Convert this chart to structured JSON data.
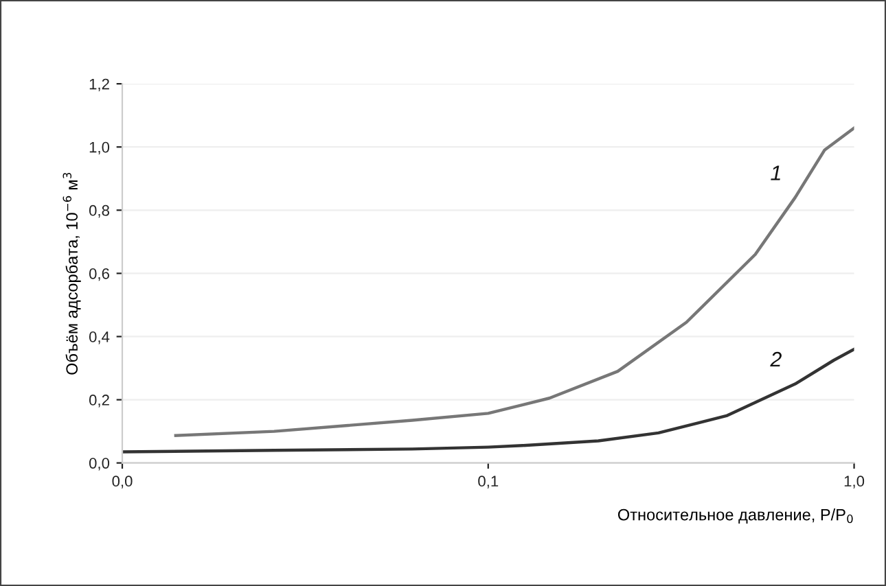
{
  "chart_data": {
    "type": "line",
    "xlabel": "Относительное давление, P/P$_{0}$",
    "ylabel": "Объём адсорбата, 10$^{−6}$ м$^{3}$",
    "log": "x",
    "xlim": [
      0.01,
      1.0
    ],
    "xticks": [
      {
        "value": 0.01,
        "label": "0,0"
      },
      {
        "value": 0.1,
        "label": "0,1"
      },
      {
        "value": 1.0,
        "label": "1,0"
      }
    ],
    "ylim": [
      0,
      1.2
    ],
    "yticks": [
      {
        "value": 0,
        "label": "0,0"
      },
      {
        "value": 0.2,
        "label": "0,2"
      },
      {
        "value": 0.4,
        "label": "0,4"
      },
      {
        "value": 0.6,
        "label": "0,6"
      },
      {
        "value": 0.8,
        "label": "0,8"
      },
      {
        "value": 1.0,
        "label": "1,0"
      },
      {
        "value": 1.2,
        "label": "1,2"
      }
    ],
    "grid": "y",
    "legend": false,
    "marker": "none",
    "line_style": "solid",
    "series": [
      {
        "name": "1",
        "color": "#777777",
        "x": [
          0.014,
          0.026,
          0.062,
          0.1,
          0.147,
          0.226,
          0.348,
          0.537,
          0.69,
          0.83,
          1.0
        ],
        "values": [
          0.087,
          0.1,
          0.135,
          0.157,
          0.205,
          0.29,
          0.445,
          0.66,
          0.84,
          0.99,
          1.06
        ]
      },
      {
        "name": "2",
        "color": "#333333",
        "x": [
          0.01,
          0.026,
          0.062,
          0.1,
          0.124,
          0.2,
          0.292,
          0.45,
          0.69,
          0.88,
          1.0
        ],
        "values": [
          0.035,
          0.04,
          0.044,
          0.05,
          0.055,
          0.07,
          0.095,
          0.15,
          0.25,
          0.325,
          0.36
        ]
      }
    ]
  }
}
